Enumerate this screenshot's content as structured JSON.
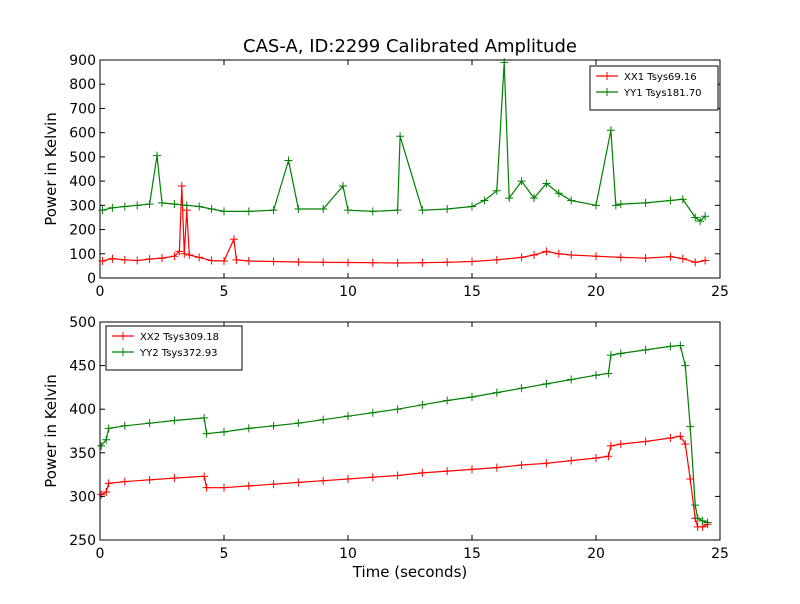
{
  "figure": {
    "title": "CAS-A, ID:2299 Calibrated Amplitude"
  },
  "chart_data": [
    {
      "type": "line",
      "title": "CAS-A, ID:2299 Calibrated Amplitude",
      "xlabel": "",
      "ylabel": "Power in Kelvin",
      "xlim": [
        0,
        25
      ],
      "ylim": [
        0,
        900
      ],
      "xticks": [
        0,
        5,
        10,
        15,
        20,
        25
      ],
      "yticks": [
        0,
        100,
        200,
        300,
        400,
        500,
        600,
        700,
        800,
        900
      ],
      "grid": false,
      "legend_position": "top-right",
      "marker": "plus",
      "series": [
        {
          "name": "XX1 Tsys69.16",
          "color": "#ff0000",
          "x": [
            0.1,
            0.5,
            1.0,
            1.5,
            2.0,
            2.5,
            3.0,
            3.2,
            3.3,
            3.4,
            3.5,
            3.6,
            4.0,
            4.5,
            5.0,
            5.4,
            5.5,
            6.0,
            7.0,
            8.0,
            9.0,
            10.0,
            11.0,
            12.0,
            13.0,
            14.0,
            15.0,
            16.0,
            17.0,
            17.5,
            18.0,
            18.5,
            19.0,
            20.0,
            21.0,
            22.0,
            23.0,
            23.5,
            24.0,
            24.4
          ],
          "y": [
            70,
            80,
            75,
            72,
            78,
            82,
            90,
            110,
            380,
            100,
            280,
            95,
            85,
            72,
            70,
            160,
            75,
            70,
            68,
            66,
            65,
            64,
            63,
            62,
            63,
            65,
            68,
            75,
            85,
            95,
            110,
            100,
            95,
            90,
            85,
            82,
            88,
            80,
            65,
            72
          ]
        },
        {
          "name": "YY1 Tsys181.70",
          "color": "#008000",
          "x": [
            0.1,
            0.5,
            1.0,
            1.5,
            2.0,
            2.3,
            2.5,
            3.0,
            3.5,
            4.0,
            4.5,
            5.0,
            6.0,
            7.0,
            7.6,
            8.0,
            9.0,
            9.8,
            10.0,
            11.0,
            12.0,
            12.1,
            13.0,
            14.0,
            15.0,
            15.5,
            16.0,
            16.3,
            16.5,
            17.0,
            17.5,
            18.0,
            18.5,
            19.0,
            20.0,
            20.6,
            20.8,
            21.0,
            22.0,
            23.0,
            23.5,
            24.0,
            24.2,
            24.4
          ],
          "y": [
            280,
            290,
            295,
            300,
            305,
            505,
            310,
            305,
            300,
            295,
            285,
            275,
            275,
            280,
            485,
            285,
            285,
            380,
            280,
            275,
            280,
            585,
            280,
            285,
            295,
            320,
            360,
            890,
            330,
            400,
            330,
            390,
            350,
            320,
            300,
            610,
            300,
            305,
            310,
            320,
            325,
            250,
            235,
            255
          ]
        }
      ]
    },
    {
      "type": "line",
      "title": "",
      "xlabel": "Time (seconds)",
      "ylabel": "Power in Kelvin",
      "xlim": [
        0,
        25
      ],
      "ylim": [
        250,
        500
      ],
      "xticks": [
        0,
        5,
        10,
        15,
        20,
        25
      ],
      "yticks": [
        250,
        300,
        350,
        400,
        450,
        500
      ],
      "grid": false,
      "legend_position": "top-left",
      "marker": "plus",
      "series": [
        {
          "name": "XX2 Tsys309.18",
          "color": "#ff0000",
          "x": [
            0.05,
            0.25,
            0.35,
            1.0,
            2.0,
            3.0,
            4.2,
            4.3,
            5.0,
            6.0,
            7.0,
            8.0,
            9.0,
            10.0,
            11.0,
            12.0,
            13.0,
            14.0,
            15.0,
            16.0,
            17.0,
            18.0,
            19.0,
            20.0,
            20.5,
            20.6,
            21.0,
            22.0,
            23.0,
            23.4,
            23.6,
            23.8,
            24.0,
            24.1,
            24.3,
            24.5
          ],
          "y": [
            302,
            305,
            315,
            317,
            319,
            321,
            323,
            310,
            310,
            312,
            314,
            316,
            318,
            320,
            322,
            324,
            327,
            329,
            331,
            333,
            336,
            338,
            341,
            344,
            346,
            358,
            360,
            363,
            367,
            369,
            360,
            320,
            275,
            265,
            265,
            268
          ]
        },
        {
          "name": "YY2 Tsys372.93",
          "color": "#008000",
          "x": [
            0.05,
            0.25,
            0.35,
            1.0,
            2.0,
            3.0,
            4.2,
            4.3,
            5.0,
            6.0,
            7.0,
            8.0,
            9.0,
            10.0,
            11.0,
            12.0,
            13.0,
            14.0,
            15.0,
            16.0,
            17.0,
            18.0,
            19.0,
            20.0,
            20.5,
            20.6,
            21.0,
            22.0,
            23.0,
            23.4,
            23.6,
            23.8,
            24.0,
            24.1,
            24.3,
            24.5
          ],
          "y": [
            358,
            365,
            378,
            381,
            384,
            387,
            390,
            372,
            374,
            378,
            381,
            384,
            388,
            392,
            396,
            400,
            405,
            410,
            414,
            419,
            424,
            429,
            434,
            439,
            441,
            462,
            464,
            468,
            472,
            473,
            450,
            380,
            290,
            275,
            272,
            270
          ]
        }
      ]
    }
  ]
}
